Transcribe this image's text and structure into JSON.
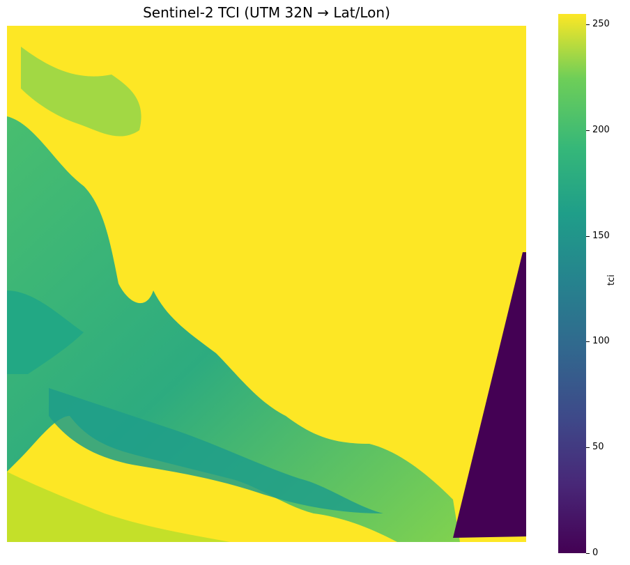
{
  "chart_data": {
    "type": "heatmap",
    "title": "Sentinel-2 TCI (UTM 32N → Lat/Lon)",
    "xlabel": "",
    "ylabel": "",
    "colormap": "viridis",
    "colorbar": {
      "label": "tci",
      "range": [
        0,
        255
      ],
      "ticks": [
        0,
        50,
        100,
        150,
        200,
        250
      ]
    },
    "axes_ticks_visible": false,
    "description_values": {
      "saturated_region_value": 255,
      "nodata_wedge_value": 0
    }
  },
  "colors": {
    "viridis_low": "#440154",
    "viridis_mid": "#21918c",
    "viridis_high": "#fde725"
  }
}
